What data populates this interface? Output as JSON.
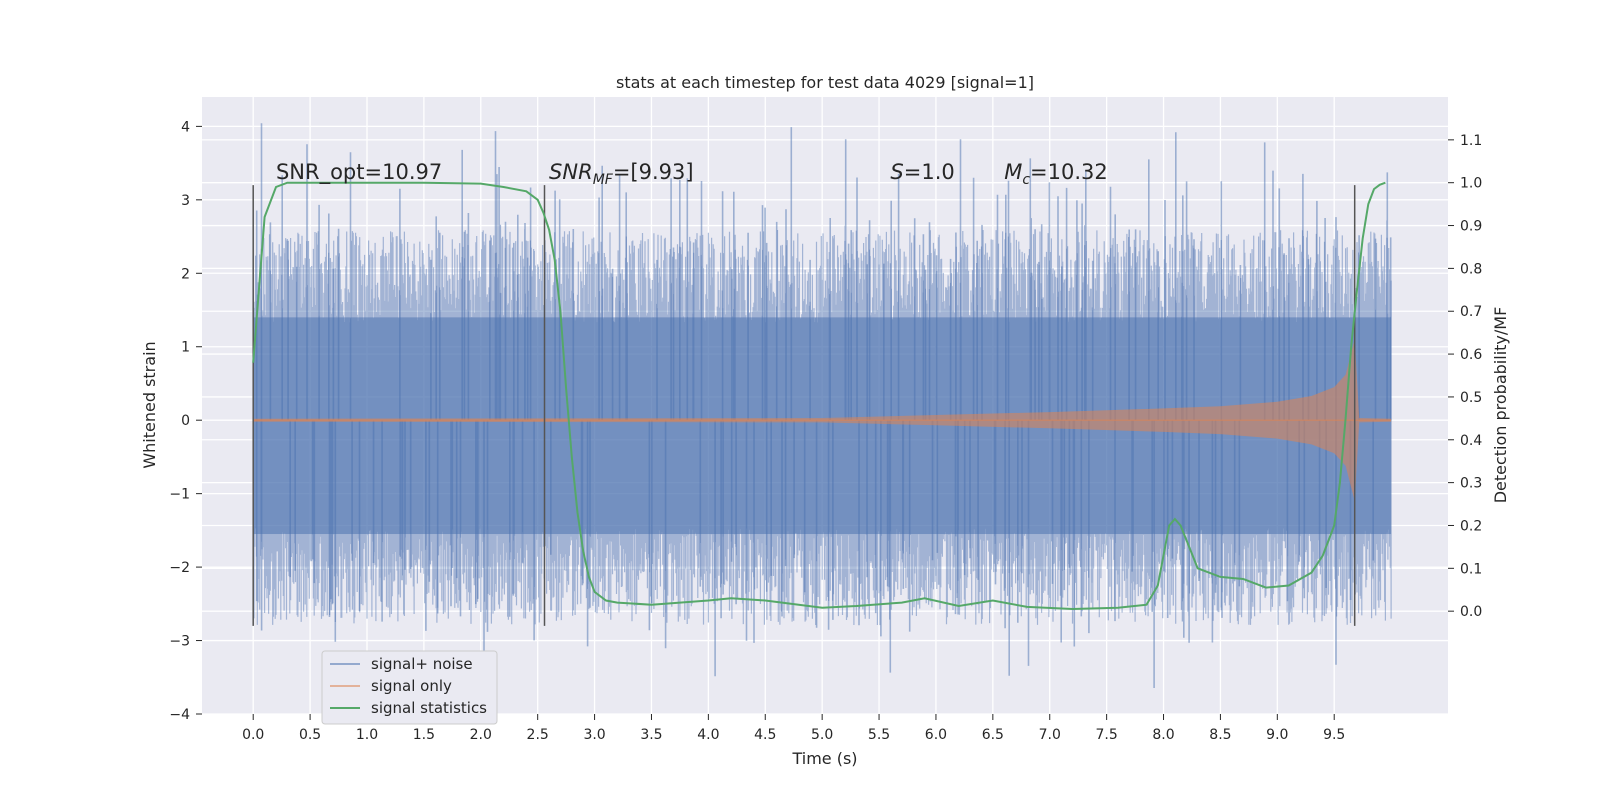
{
  "chart_data": {
    "type": "line",
    "title": "stats at each timestep for test data 4029 [signal=1]",
    "xlabel": "Time (s)",
    "ylabel": "Whitened strain",
    "y2label": "Detection probability/MF",
    "xlim": [
      -0.45,
      10.5
    ],
    "ylim": [
      -4.0,
      4.4
    ],
    "y2lim": [
      -0.24,
      1.2
    ],
    "xticks": [
      "0.0",
      "0.5",
      "1.0",
      "1.5",
      "2.0",
      "2.5",
      "3.0",
      "3.5",
      "4.0",
      "4.5",
      "5.0",
      "5.5",
      "6.0",
      "6.5",
      "7.0",
      "7.5",
      "8.0",
      "8.5",
      "9.0",
      "9.5"
    ],
    "xtick_values": [
      0.0,
      0.5,
      1.0,
      1.5,
      2.0,
      2.5,
      3.0,
      3.5,
      4.0,
      4.5,
      5.0,
      5.5,
      6.0,
      6.5,
      7.0,
      7.5,
      8.0,
      8.5,
      9.0,
      9.5
    ],
    "yticks": [
      "4",
      "3",
      "2",
      "1",
      "0",
      "−1",
      "−2",
      "−3",
      "−4"
    ],
    "ytick_values": [
      4,
      3,
      2,
      1,
      0,
      -1,
      -2,
      -3,
      -4
    ],
    "y2ticks": [
      "1.1",
      "1.0",
      "0.9",
      "0.8",
      "0.7",
      "0.6",
      "0.5",
      "0.4",
      "0.3",
      "0.2",
      "0.1",
      "0.0"
    ],
    "y2tick_values": [
      1.1,
      1.0,
      0.9,
      0.8,
      0.7,
      0.6,
      0.5,
      0.4,
      0.3,
      0.2,
      0.1,
      0.0
    ],
    "grid": true,
    "legend_position": "lower-left",
    "series": [
      {
        "name": "signal+ noise",
        "color": "#4c72b0",
        "axis": "left",
        "x_range": [
          0.0,
          10.0
        ],
        "envelope_upper": 1.4,
        "envelope_lower": -1.55,
        "noise_spikes_max": 4.05,
        "noise_spikes_min": -3.65
      },
      {
        "name": "signal only",
        "color": "#dd8452",
        "axis": "left",
        "x": [
          0.0,
          5.0,
          6.0,
          7.0,
          8.0,
          8.5,
          9.0,
          9.3,
          9.5,
          9.6,
          9.68,
          9.72,
          10.0
        ],
        "amplitude": [
          0.02,
          0.03,
          0.07,
          0.11,
          0.16,
          0.19,
          0.25,
          0.33,
          0.45,
          0.62,
          1.1,
          0.03,
          0.02
        ]
      },
      {
        "name": "signal statistics",
        "color": "#55a868",
        "axis": "right",
        "x": [
          0.0,
          0.05,
          0.1,
          0.2,
          0.3,
          0.5,
          1.0,
          1.5,
          2.0,
          2.2,
          2.4,
          2.5,
          2.55,
          2.6,
          2.65,
          2.7,
          2.75,
          2.8,
          2.85,
          2.9,
          2.95,
          3.0,
          3.1,
          3.2,
          3.5,
          4.0,
          4.2,
          4.5,
          5.0,
          5.3,
          5.7,
          5.9,
          6.2,
          6.5,
          6.8,
          7.2,
          7.6,
          7.85,
          7.95,
          8.0,
          8.05,
          8.1,
          8.15,
          8.3,
          8.5,
          8.7,
          8.9,
          9.1,
          9.3,
          9.4,
          9.5,
          9.55,
          9.6,
          9.65,
          9.7,
          9.75,
          9.8,
          9.85,
          9.9,
          9.95
        ],
        "values": [
          0.58,
          0.75,
          0.92,
          0.99,
          1.0,
          1.0,
          1.0,
          1.0,
          0.998,
          0.99,
          0.98,
          0.96,
          0.93,
          0.89,
          0.82,
          0.7,
          0.52,
          0.36,
          0.23,
          0.14,
          0.08,
          0.045,
          0.025,
          0.02,
          0.015,
          0.025,
          0.03,
          0.025,
          0.008,
          0.012,
          0.02,
          0.03,
          0.012,
          0.025,
          0.01,
          0.005,
          0.008,
          0.015,
          0.06,
          0.13,
          0.2,
          0.215,
          0.2,
          0.1,
          0.08,
          0.075,
          0.055,
          0.06,
          0.09,
          0.13,
          0.2,
          0.3,
          0.45,
          0.62,
          0.75,
          0.87,
          0.95,
          0.985,
          0.995,
          1.0
        ]
      }
    ],
    "vlines": {
      "color": "#555555",
      "x": [
        0.0,
        2.56,
        9.68
      ],
      "y_range": [
        -2.8,
        3.2
      ]
    },
    "annotations": [
      {
        "text": "SNR_opt=10.97",
        "x": 0.2,
        "y": 3.2
      },
      {
        "text_main": "SNR",
        "text_sub": "MF",
        "text_tail": "=[9.93]",
        "x": 2.6,
        "y": 3.2
      },
      {
        "text_main": "S",
        "text_tail": "=1.0",
        "x": 5.6,
        "y": 3.2
      },
      {
        "text_main": "M",
        "text_sub": "c",
        "text_tail": "=10.32",
        "x": 6.6,
        "y": 3.2
      }
    ]
  }
}
